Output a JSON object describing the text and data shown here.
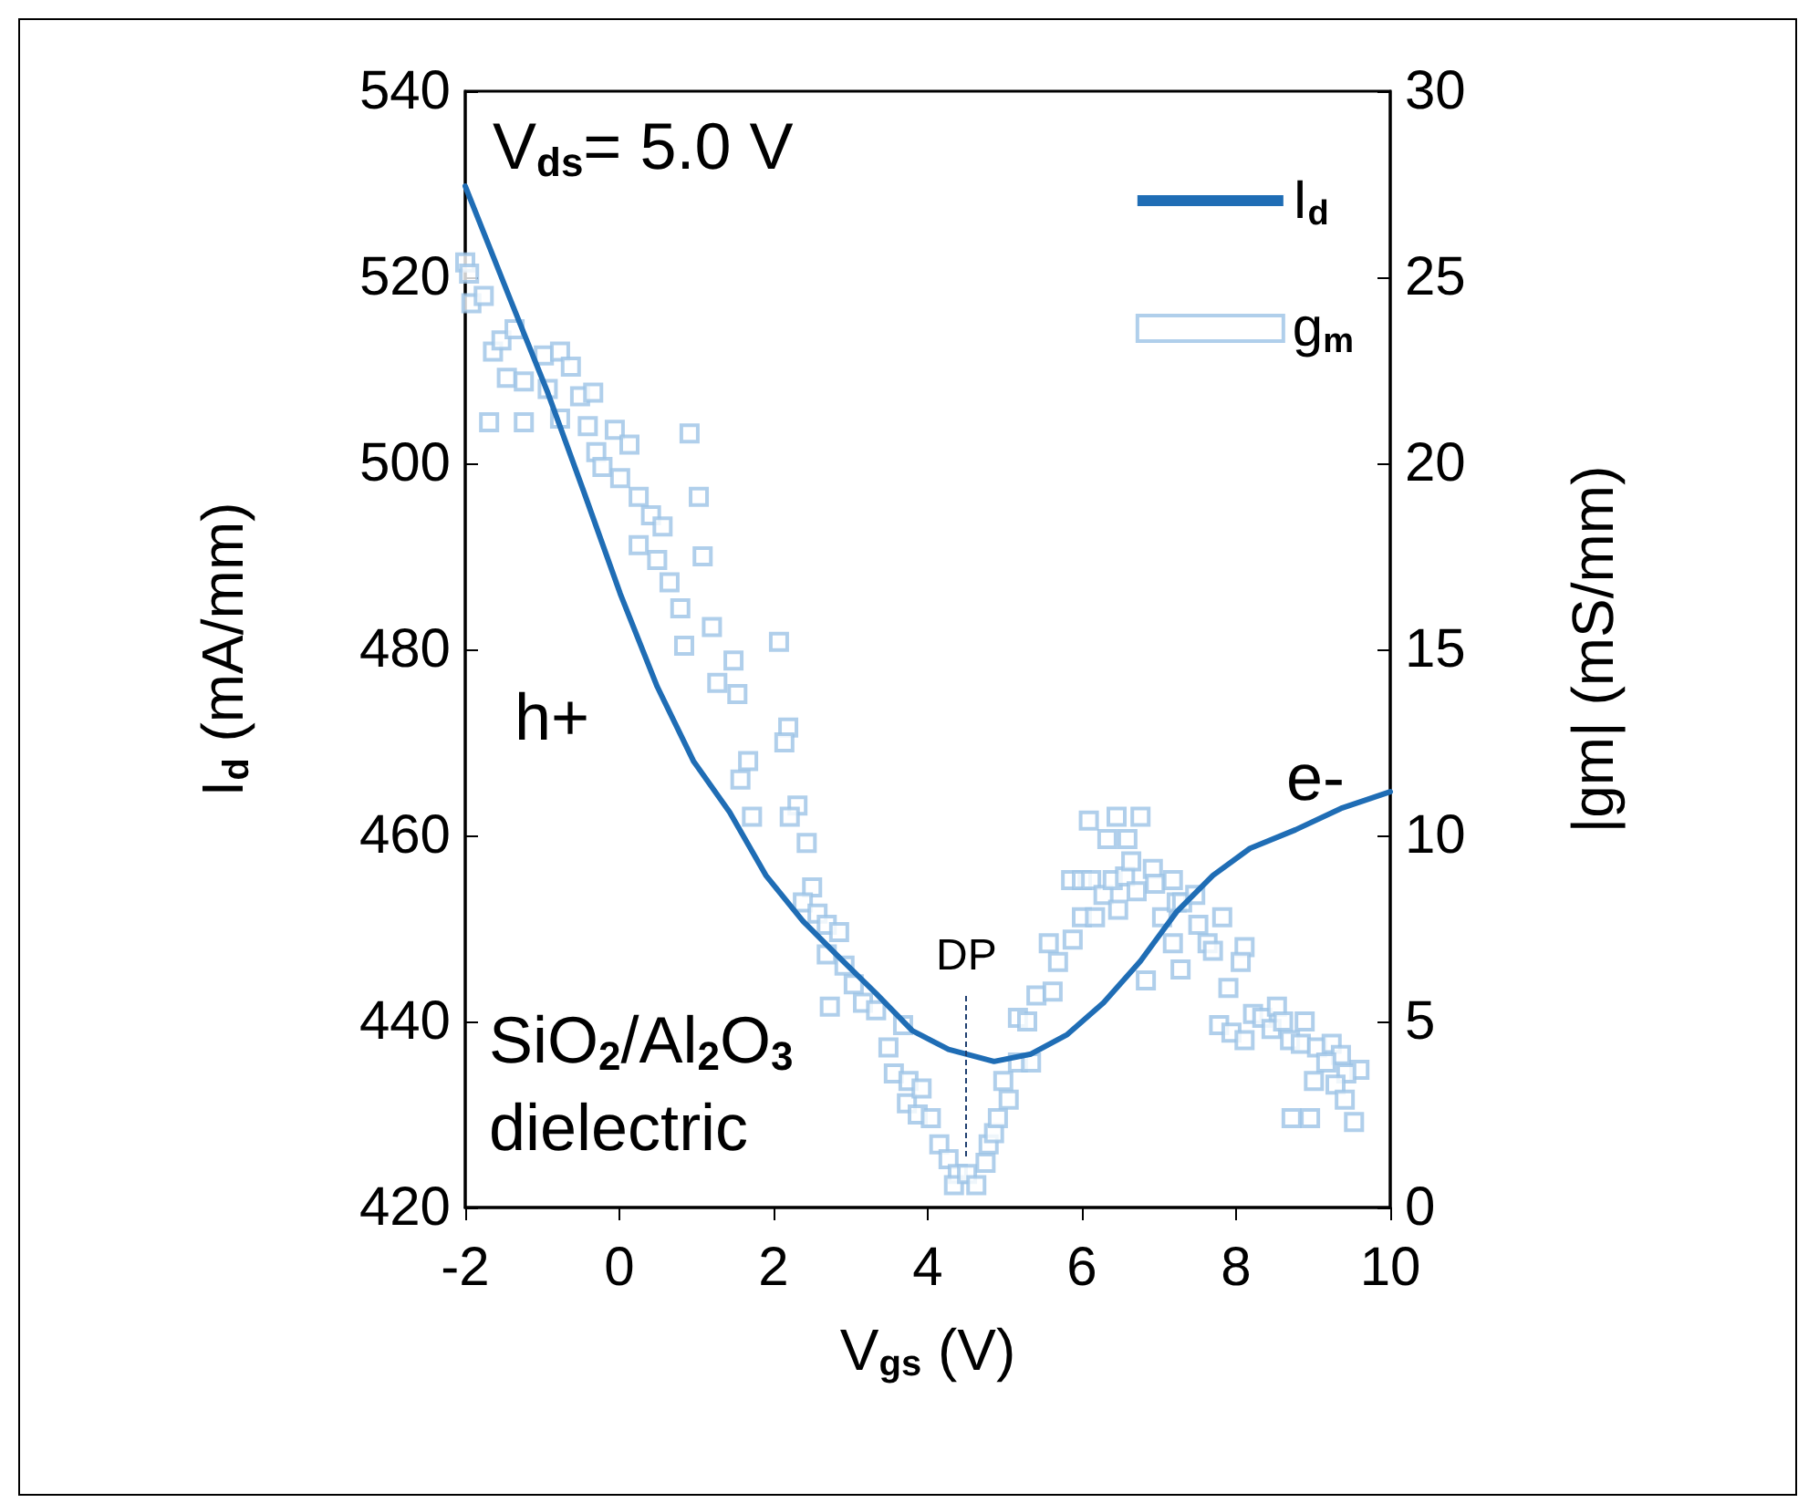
{
  "chart_data": {
    "type": "line",
    "xlabel": "V$_{gs}$ (V)",
    "ylabel": "I$_{d}$ (mA/mm)",
    "y2label": "|gm| (mS/mm)",
    "xlim": [
      -2,
      10
    ],
    "xticks": [
      -2,
      0,
      2,
      4,
      6,
      8,
      10
    ],
    "ylim": [
      420,
      540
    ],
    "yticks": [
      420,
      440,
      460,
      480,
      500,
      520,
      540
    ],
    "y2lim": [
      0,
      30
    ],
    "y2ticks": [
      0,
      5,
      10,
      15,
      20,
      25,
      30
    ],
    "legend": "top right",
    "grid": false,
    "annotations": [
      "V$_{ds}$= 5.0 V",
      "h+",
      "e-",
      "SiO$_{2}$/Al$_{2}$O$_{3}$",
      "dielectric",
      "DP"
    ],
    "series": [
      {
        "name": "I$_{d}$",
        "color": "#1f6db5",
        "marker": "none",
        "line_style": "solid",
        "x": [
          -2.0,
          -1.41,
          -0.93,
          -0.46,
          0.01,
          0.49,
          0.96,
          1.43,
          1.9,
          2.38,
          2.85,
          3.33,
          3.8,
          4.27,
          4.86,
          5.34,
          5.81,
          6.28,
          6.76,
          7.23,
          7.7,
          8.18,
          8.77,
          9.36,
          10.0
        ],
        "values": [
          529.8,
          517.5,
          507.6,
          496.9,
          486.0,
          476.0,
          468.0,
          462.5,
          455.7,
          450.8,
          446.9,
          443.0,
          439.0,
          437.0,
          435.7,
          436.5,
          438.6,
          442.0,
          446.5,
          451.8,
          455.7,
          458.6,
          460.6,
          462.9,
          464.7
        ]
      },
      {
        "name": "g$_{m}$",
        "type": "scatter",
        "axis": "y2",
        "color": "#9cc3e6",
        "marker": "square",
        "x": [
          -2.0,
          -1.95,
          -1.92,
          -1.76,
          -1.64,
          -1.53,
          -1.36,
          -1.46,
          -1.69,
          -1.24,
          -1.24,
          -0.98,
          -0.77,
          -0.63,
          -0.93,
          -0.51,
          -0.34,
          -0.77,
          -0.41,
          -0.06,
          0.13,
          -0.3,
          -0.22,
          0.01,
          0.25,
          0.41,
          0.56,
          0.25,
          0.49,
          0.65,
          0.91,
          1.03,
          1.08,
          0.79,
          1.2,
          0.84,
          2.07,
          1.48,
          1.27,
          1.53,
          2.19,
          2.14,
          1.67,
          1.57,
          1.72,
          2.31,
          2.21,
          2.43,
          2.5,
          2.38,
          2.57,
          2.69,
          2.85,
          2.69,
          2.92,
          3.04,
          3.16,
          3.33,
          2.73,
          3.68,
          3.49,
          3.56,
          3.75,
          3.73,
          3.87,
          3.92,
          4.04,
          4.15,
          4.27,
          4.39,
          4.34,
          4.51,
          4.63,
          4.75,
          4.79,
          4.86,
          4.91,
          5.05,
          4.98,
          5.17,
          5.34,
          5.17,
          5.29,
          5.41,
          5.62,
          5.57,
          5.69,
          5.88,
          5.86,
          6.0,
          6.0,
          6.17,
          6.12,
          6.28,
          6.4,
          6.47,
          6.56,
          6.64,
          6.71,
          6.09,
          6.45,
          6.76,
          6.33,
          6.59,
          6.92,
          6.95,
          7.04,
          7.18,
          7.23,
          7.3,
          7.47,
          7.51,
          7.63,
          7.7,
          7.82,
          7.28,
          7.18,
          6.83,
          8.11,
          8.06,
          7.9,
          7.78,
          7.94,
          8.11,
          8.22,
          8.34,
          8.53,
          8.46,
          8.61,
          8.7,
          8.89,
          8.84,
          9.05,
          9.24,
          9.36,
          9.17,
          9.6,
          9.43,
          9.01,
          9.29,
          9.41,
          8.72,
          8.96,
          9.53
        ],
        "values": [
          25.4,
          25.1,
          24.3,
          24.5,
          23.0,
          23.3,
          23.6,
          22.3,
          21.1,
          21.1,
          22.2,
          22.9,
          23.0,
          22.6,
          22.0,
          21.8,
          21.9,
          21.2,
          21.0,
          20.9,
          20.5,
          20.3,
          19.9,
          19.6,
          19.1,
          18.6,
          18.3,
          17.8,
          17.4,
          16.8,
          20.8,
          19.1,
          17.5,
          16.1,
          15.6,
          15.1,
          15.2,
          14.7,
          14.1,
          13.8,
          12.9,
          12.5,
          12.0,
          11.5,
          10.5,
          10.8,
          10.5,
          9.8,
          8.6,
          8.2,
          7.9,
          7.6,
          7.4,
          6.8,
          6.5,
          6.0,
          5.5,
          5.3,
          5.4,
          4.9,
          4.3,
          3.6,
          3.4,
          2.8,
          2.5,
          3.2,
          2.4,
          1.7,
          1.3,
          0.9,
          0.6,
          0.9,
          0.6,
          1.2,
          1.7,
          2.0,
          2.4,
          2.9,
          3.4,
          3.9,
          3.9,
          5.1,
          5.0,
          5.7,
          5.8,
          7.1,
          6.6,
          7.2,
          8.8,
          8.8,
          7.8,
          7.8,
          8.8,
          8.4,
          8.8,
          8.0,
          8.9,
          9.3,
          8.5,
          10.4,
          10.5,
          10.5,
          9.9,
          9.9,
          9.1,
          8.7,
          7.8,
          8.8,
          8.2,
          8.2,
          8.4,
          7.6,
          7.1,
          6.9,
          7.8,
          6.4,
          7.1,
          6.1,
          7.0,
          6.6,
          5.9,
          4.9,
          4.7,
          4.5,
          5.2,
          5.1,
          5.4,
          4.8,
          5.0,
          4.5,
          5.0,
          4.4,
          4.3,
          4.4,
          4.1,
          3.9,
          3.7,
          3.6,
          3.4,
          3.3,
          2.9,
          2.4,
          2.4,
          2.3
        ]
      }
    ]
  }
}
